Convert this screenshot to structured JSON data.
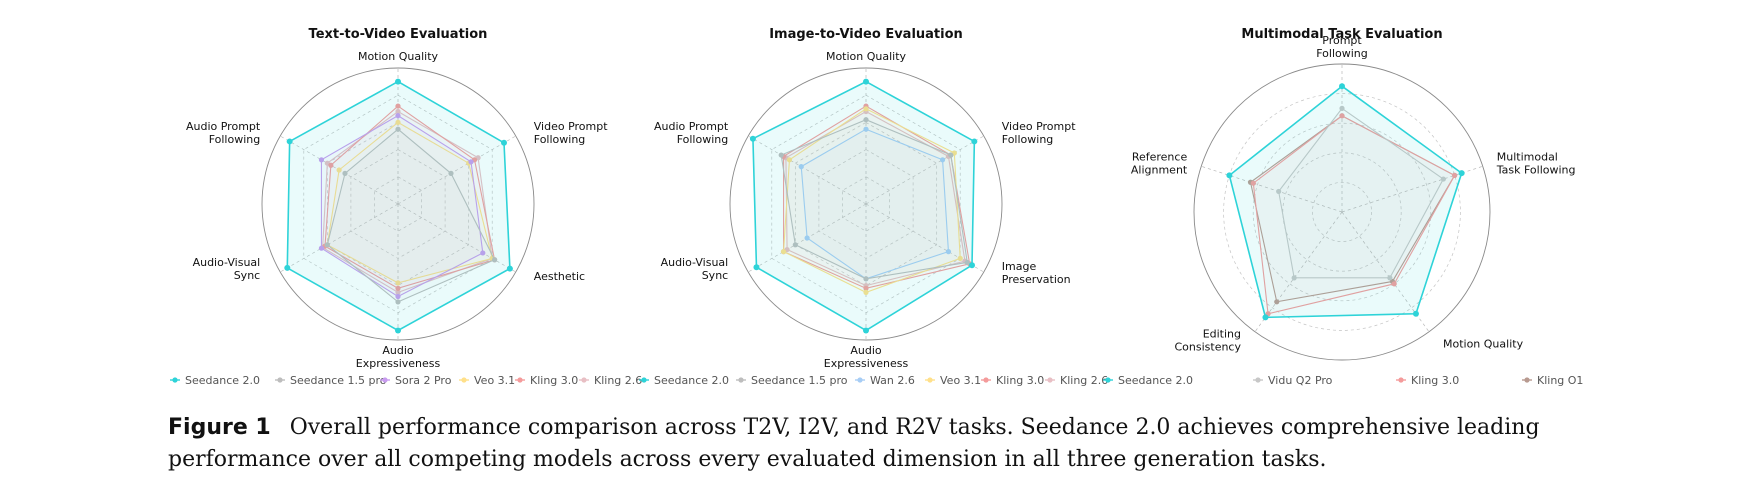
{
  "chart_data": [
    {
      "type": "radar",
      "title": "Text-to-Video Evaluation",
      "axes": [
        "Motion Quality",
        "Video Prompt Following",
        "Aesthetic",
        "Audio Expressiveness",
        "Audio-Visual Sync",
        "Audio Prompt Following"
      ],
      "rmax": 1.0,
      "grid": true,
      "legend_position": "bottom",
      "series": [
        {
          "name": "Seedance 2.0",
          "color": "#2ED3D8",
          "values": [
            0.9,
            0.9,
            0.95,
            0.93,
            0.94,
            0.92
          ]
        },
        {
          "name": "Seedance 1.5 pro",
          "color": "#BDBDBD",
          "values": [
            0.55,
            0.45,
            0.82,
            0.72,
            0.6,
            0.45
          ]
        },
        {
          "name": "Sora 2 Pro",
          "color": "#C89BEF",
          "values": [
            0.65,
            0.62,
            0.72,
            0.68,
            0.65,
            0.65
          ]
        },
        {
          "name": "Veo 3.1",
          "color": "#FFE08A",
          "values": [
            0.6,
            0.6,
            0.8,
            0.58,
            0.6,
            0.5
          ]
        },
        {
          "name": "Kling 3.0",
          "color": "#F49B9B",
          "values": [
            0.72,
            0.65,
            0.82,
            0.62,
            0.62,
            0.57
          ]
        },
        {
          "name": "Kling 2.6",
          "color": "#E8BFC4",
          "values": [
            0.68,
            0.68,
            0.8,
            0.65,
            0.64,
            0.6
          ]
        }
      ]
    },
    {
      "type": "radar",
      "title": "Image-to-Video Evaluation",
      "axes": [
        "Motion Quality",
        "Video Prompt Following",
        "Image Preservation",
        "Audio Expressiveness",
        "Audio-Visual Sync",
        "Audio Prompt Following"
      ],
      "rmax": 1.0,
      "grid": true,
      "legend_position": "bottom",
      "series": [
        {
          "name": "Seedance 2.0",
          "color": "#2ED3D8",
          "values": [
            0.9,
            0.92,
            0.9,
            0.93,
            0.93,
            0.96
          ]
        },
        {
          "name": "Seedance 1.5 pro",
          "color": "#BDBDBD",
          "values": [
            0.62,
            0.72,
            0.86,
            0.55,
            0.6,
            0.72
          ]
        },
        {
          "name": "Wan 2.6",
          "color": "#A7CDF5",
          "values": [
            0.55,
            0.65,
            0.7,
            0.55,
            0.5,
            0.55
          ]
        },
        {
          "name": "Veo 3.1",
          "color": "#FFE08A",
          "values": [
            0.7,
            0.75,
            0.8,
            0.65,
            0.7,
            0.65
          ]
        },
        {
          "name": "Kling 3.0",
          "color": "#F49B9B",
          "values": [
            0.72,
            0.72,
            0.88,
            0.62,
            0.7,
            0.7
          ]
        },
        {
          "name": "Kling 2.6",
          "color": "#E8BFC4",
          "values": [
            0.68,
            0.7,
            0.84,
            0.6,
            0.67,
            0.68
          ]
        }
      ]
    },
    {
      "type": "radar",
      "title": "Multimodal Task Evaluation",
      "axes": [
        "Prompt Following",
        "Multimodal Task Following",
        "Motion Quality",
        "Editing Consistency",
        "Reference Alignment"
      ],
      "rmax": 1.0,
      "grid": true,
      "legend_position": "bottom",
      "series": [
        {
          "name": "Seedance 2.0",
          "color": "#2ED3D8",
          "values": [
            0.85,
            0.85,
            0.85,
            0.88,
            0.8
          ]
        },
        {
          "name": "Vidu Q2 Pro",
          "color": "#C7C7C7",
          "values": [
            0.7,
            0.72,
            0.55,
            0.55,
            0.45
          ]
        },
        {
          "name": "Kling 3.0",
          "color": "#F49B9B",
          "values": [
            0.65,
            0.8,
            0.6,
            0.85,
            0.63
          ]
        },
        {
          "name": "Kling O1",
          "color": "#B89A90",
          "values": [
            0.65,
            0.8,
            0.58,
            0.75,
            0.65
          ]
        }
      ]
    }
  ],
  "caption": {
    "label": "Figure 1",
    "text": "Overall performance comparison across T2V, I2V, and R2V tasks. Seedance 2.0 achieves comprehensive leading performance over all competing models across every evaluated dimension in all three generation tasks."
  }
}
